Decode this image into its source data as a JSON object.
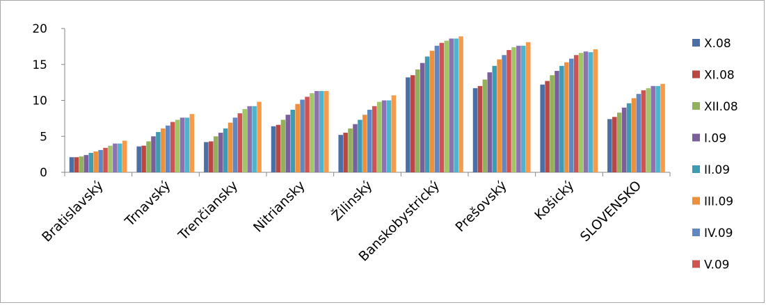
{
  "chart_data": {
    "type": "bar",
    "title": "",
    "xlabel": "",
    "ylabel": "",
    "ylim": [
      0,
      20
    ],
    "yticks": [
      0,
      5,
      10,
      15,
      20
    ],
    "grid": false,
    "legend_position": "right",
    "categories": [
      "Bratislavský",
      "Trnavský",
      "Trenčiansky",
      "Nitriansky",
      "Žilinský",
      "Banskobystrický",
      "Prešovský",
      "Košický",
      "SLOVENSKO"
    ],
    "series": [
      {
        "name": "X.08",
        "color": "#4a6fa5",
        "values": [
          2.1,
          3.6,
          4.2,
          6.4,
          5.2,
          13.2,
          11.7,
          12.2,
          7.4
        ]
      },
      {
        "name": "XI.08",
        "color": "#b94743",
        "values": [
          2.1,
          3.7,
          4.3,
          6.6,
          5.5,
          13.5,
          12.0,
          12.7,
          7.7
        ]
      },
      {
        "name": "XII.08",
        "color": "#93b15c",
        "values": [
          2.2,
          4.3,
          5.0,
          7.3,
          6.1,
          14.3,
          12.9,
          13.5,
          8.3
        ]
      },
      {
        "name": "I.09",
        "color": "#7a5f9a",
        "values": [
          2.4,
          5.0,
          5.5,
          8.0,
          6.7,
          15.2,
          13.9,
          14.1,
          9.0
        ]
      },
      {
        "name": "II.09",
        "color": "#3f9bb2",
        "values": [
          2.7,
          5.6,
          6.1,
          8.7,
          7.3,
          16.1,
          14.8,
          14.8,
          9.6
        ]
      },
      {
        "name": "III.09",
        "color": "#ee8f3c",
        "values": [
          2.9,
          6.1,
          6.9,
          9.5,
          8.0,
          16.9,
          15.7,
          15.3,
          10.3
        ]
      },
      {
        "name": "IV.09",
        "color": "#5f87c2",
        "values": [
          3.1,
          6.5,
          7.6,
          10.1,
          8.7,
          17.6,
          16.3,
          15.8,
          10.9
        ]
      },
      {
        "name": "V.09",
        "color": "#cd5452",
        "values": [
          3.4,
          7.0,
          8.2,
          10.5,
          9.2,
          18.0,
          17.0,
          16.3,
          11.4
        ]
      },
      {
        "name": "",
        "color": "#a2c46a",
        "values": [
          3.7,
          7.3,
          8.8,
          11.0,
          9.8,
          18.3,
          17.4,
          16.6,
          11.7
        ]
      },
      {
        "name": "",
        "color": "#8c72b0",
        "values": [
          4.0,
          7.6,
          9.2,
          11.3,
          10.0,
          18.6,
          17.6,
          16.8,
          12.0
        ]
      },
      {
        "name": "",
        "color": "#4db4cc",
        "values": [
          4.0,
          7.6,
          9.2,
          11.3,
          10.0,
          18.6,
          17.6,
          16.7,
          12.0
        ]
      },
      {
        "name": "",
        "color": "#f79a4a",
        "values": [
          4.4,
          8.1,
          9.8,
          11.3,
          10.7,
          18.9,
          18.1,
          17.1,
          12.3
        ]
      }
    ],
    "legend": [
      "X.08",
      "XI.08",
      "XII.08",
      "I.09",
      "II.09",
      "III.09",
      "IV.09",
      "V.09"
    ]
  }
}
